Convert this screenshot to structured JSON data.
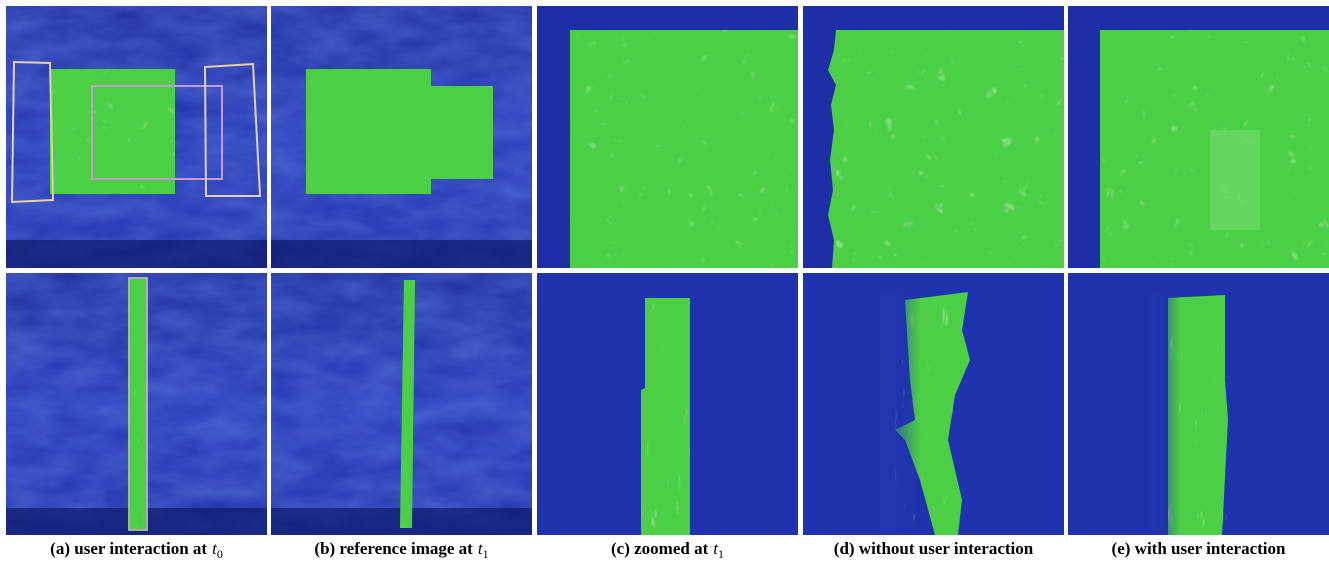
{
  "figure": {
    "captions": [
      {
        "text": "(a) user interaction at",
        "var": "t",
        "sub": "0"
      },
      {
        "text": "(b) reference image at",
        "var": "t",
        "sub": "1"
      },
      {
        "text": "(c) zoomed at",
        "var": "t",
        "sub": "1"
      },
      {
        "text": "(d) without user interaction"
      },
      {
        "text": "(e) with user interaction"
      }
    ]
  }
}
